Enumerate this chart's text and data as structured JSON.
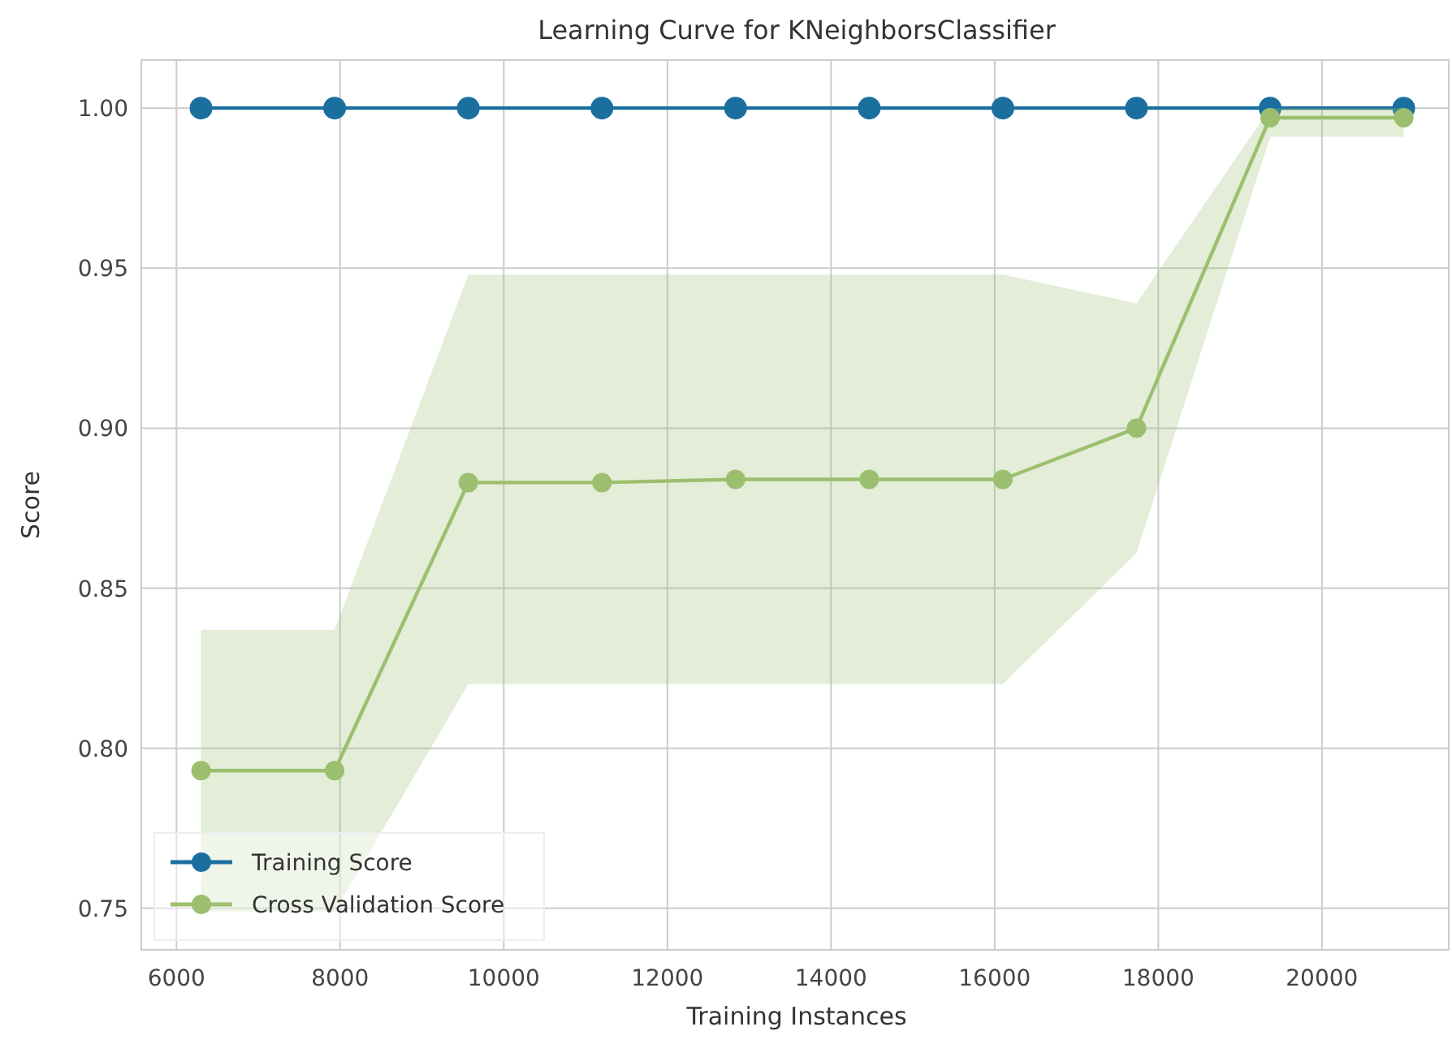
{
  "chart_data": {
    "type": "line",
    "title": "Learning Curve for KNeighborsClassifier",
    "xlabel": "Training Instances",
    "ylabel": "Score",
    "x": [
      6300,
      7933,
      9567,
      11200,
      12833,
      14467,
      16100,
      17733,
      19367,
      21000
    ],
    "xlim": [
      5570,
      21550
    ],
    "xticks": [
      6000,
      8000,
      10000,
      12000,
      14000,
      16000,
      18000,
      20000
    ],
    "ylim": [
      0.737,
      1.015
    ],
    "yticks": [
      {
        "value": 0.75,
        "label": "0.75"
      },
      {
        "value": 0.8,
        "label": "0.80"
      },
      {
        "value": 0.85,
        "label": "0.85"
      },
      {
        "value": 0.9,
        "label": "0.90"
      },
      {
        "value": 0.95,
        "label": "0.95"
      },
      {
        "value": 1.0,
        "label": "1.00"
      }
    ],
    "series": [
      {
        "name": "Training Score",
        "color": "#1a6f9f",
        "values": [
          1,
          1,
          1,
          1,
          1,
          1,
          1,
          1,
          1,
          1
        ]
      },
      {
        "name": "Cross Validation Score",
        "color": "#9cbf6f",
        "values": [
          0.793,
          0.793,
          0.883,
          0.883,
          0.884,
          0.884,
          0.884,
          0.9,
          0.997,
          0.997
        ],
        "lower": [
          0.749,
          0.749,
          0.82,
          0.82,
          0.82,
          0.82,
          0.82,
          0.861,
          0.991,
          0.991
        ],
        "upper": [
          0.837,
          0.837,
          0.948,
          0.948,
          0.948,
          0.948,
          0.948,
          0.939,
          1.0,
          1.0
        ]
      }
    ],
    "grid": true,
    "legend": "bottom left",
    "marker": "circle",
    "line_style": "solid"
  }
}
